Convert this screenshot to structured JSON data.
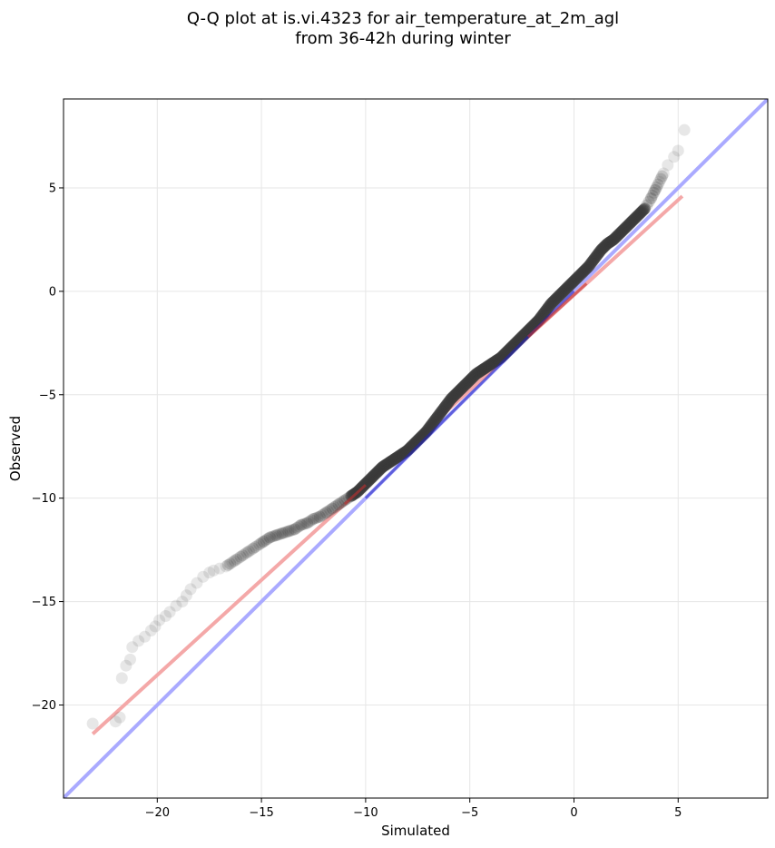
{
  "chart_data": {
    "type": "scatter",
    "title": [
      "Q-Q plot at is.vi.4323 for air_temperature_at_2m_agl",
      "from 36-42h during winter"
    ],
    "xlabel": "Simulated",
    "ylabel": "Observed",
    "xlim": [
      -24.5,
      9.3
    ],
    "ylim": [
      -24.5,
      9.3
    ],
    "xticks": [
      -20,
      -15,
      -10,
      -5,
      0,
      5
    ],
    "yticks": [
      -20,
      -15,
      -10,
      -5,
      0,
      5
    ],
    "grid": true,
    "colors": {
      "points": "#3a3a3a",
      "identity_line": "#aaaaff",
      "fit_line": "#f4a8a8",
      "fit_line_core": "#c03030",
      "identity_core": "#2020c0"
    },
    "identity_line": {
      "x": [
        -24.5,
        9.3
      ],
      "y": [
        -24.5,
        9.3
      ]
    },
    "fit_line": {
      "x": [
        -23.1,
        5.2
      ],
      "y": [
        -21.4,
        4.6
      ]
    },
    "points": {
      "x": [
        -23.1,
        -22.0,
        -21.8,
        -21.7,
        -21.5,
        -21.3,
        -21.2,
        -20.9,
        -20.6,
        -20.3,
        -20.1,
        -19.9,
        -19.6,
        -19.4,
        -19.1,
        -18.8,
        -18.6,
        -18.4,
        -18.1,
        -17.8,
        -17.5,
        -17.3,
        -17.0,
        -16.7,
        -16.4,
        -16.1,
        -15.8,
        -15.5,
        -15.2,
        -14.9,
        -14.6,
        -14.3,
        -14.0,
        -13.7,
        -13.4,
        -13.1,
        -12.8,
        -12.5,
        -12.2,
        -11.9,
        -11.6,
        -11.3,
        -11.0,
        -10.7,
        -10.4,
        -10.1,
        -9.8,
        -9.5,
        -9.2,
        -8.9,
        -8.6,
        -8.3,
        -8.0,
        -7.7,
        -7.4,
        -7.1,
        -6.8,
        -6.5,
        -6.2,
        -5.9,
        -5.6,
        -5.3,
        -5.0,
        -4.7,
        -4.4,
        -4.1,
        -3.8,
        -3.5,
        -3.2,
        -2.9,
        -2.6,
        -2.3,
        -2.0,
        -1.7,
        -1.4,
        -1.1,
        -0.8,
        -0.5,
        -0.2,
        0.1,
        0.4,
        0.7,
        1.0,
        1.3,
        1.6,
        1.9,
        2.2,
        2.5,
        2.8,
        3.1,
        3.4,
        3.7,
        3.9,
        4.1,
        4.3,
        4.5,
        4.8,
        5.0,
        5.3
      ],
      "y": [
        -20.9,
        -20.8,
        -20.6,
        -18.7,
        -18.1,
        -17.8,
        -17.2,
        -16.9,
        -16.7,
        -16.4,
        -16.2,
        -15.9,
        -15.7,
        -15.5,
        -15.2,
        -15.0,
        -14.7,
        -14.4,
        -14.1,
        -13.8,
        -13.6,
        -13.5,
        -13.4,
        -13.3,
        -13.1,
        -12.9,
        -12.7,
        -12.5,
        -12.3,
        -12.1,
        -11.9,
        -11.8,
        -11.7,
        -11.6,
        -11.5,
        -11.3,
        -11.2,
        -11.0,
        -10.9,
        -10.7,
        -10.5,
        -10.3,
        -10.1,
        -9.9,
        -9.7,
        -9.4,
        -9.1,
        -8.8,
        -8.5,
        -8.3,
        -8.1,
        -7.9,
        -7.7,
        -7.4,
        -7.1,
        -6.8,
        -6.4,
        -6.0,
        -5.6,
        -5.2,
        -4.9,
        -4.6,
        -4.3,
        -4.0,
        -3.8,
        -3.6,
        -3.4,
        -3.2,
        -2.9,
        -2.6,
        -2.3,
        -2.0,
        -1.7,
        -1.4,
        -1.0,
        -0.6,
        -0.3,
        0.0,
        0.3,
        0.6,
        0.9,
        1.2,
        1.6,
        2.0,
        2.3,
        2.5,
        2.8,
        3.1,
        3.4,
        3.7,
        4.0,
        4.5,
        4.9,
        5.3,
        5.7,
        6.1,
        6.5,
        6.8,
        7.8
      ]
    }
  }
}
